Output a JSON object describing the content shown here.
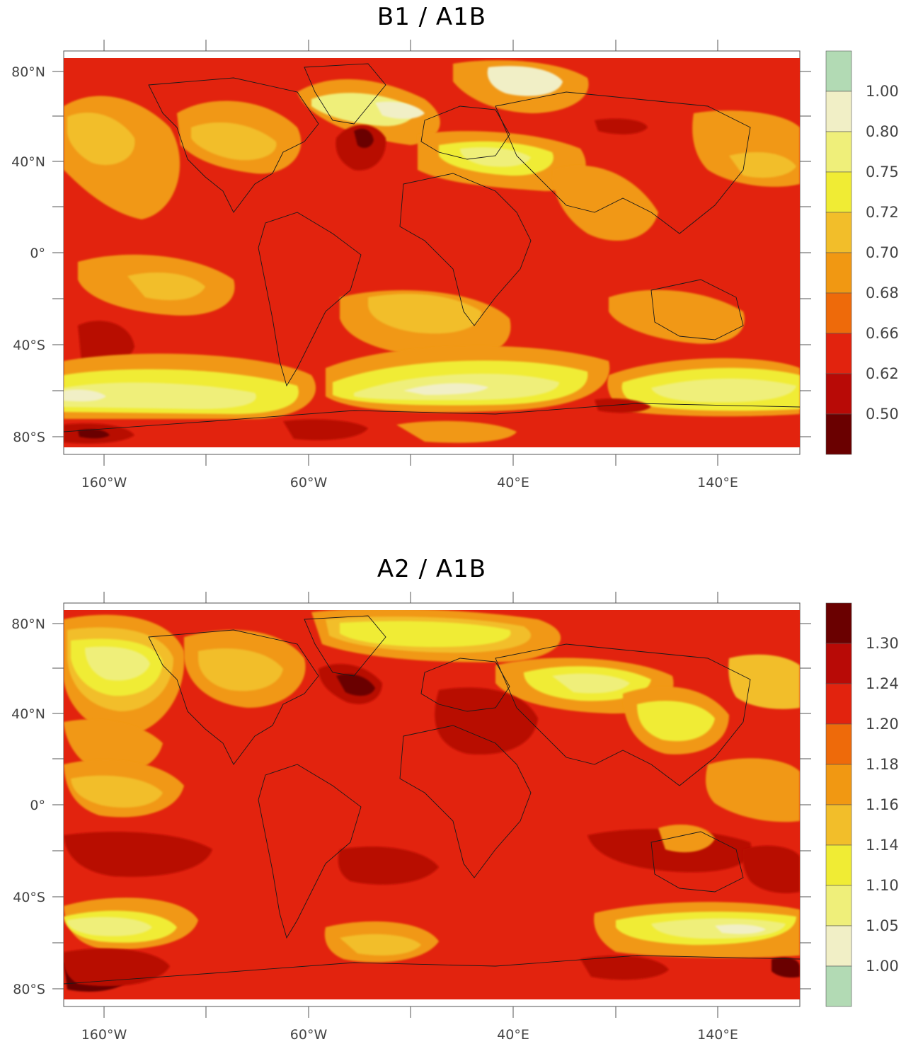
{
  "panels": [
    {
      "title": "B1 / A1B",
      "lat_ticks": [
        "80°N",
        "40°N",
        "0°",
        "40°S",
        "80°S"
      ],
      "lon_ticks": [
        "160°W",
        "60°W",
        "40°E",
        "140°E"
      ],
      "colorbar": {
        "labels": [
          "1.00",
          "0.80",
          "0.75",
          "0.72",
          "0.70",
          "0.68",
          "0.66",
          "0.62",
          "0.50"
        ],
        "colors": [
          "#b2dab4",
          "#f1efc6",
          "#efef7a",
          "#f0ec34",
          "#f2be2a",
          "#f19812",
          "#ee6a0a",
          "#e2230e",
          "#b80a06",
          "#6a0000"
        ]
      },
      "palette": {
        "base": "#e2230e",
        "dark": "#b80a06",
        "darkest": "#6a0000",
        "orange": "#f19812",
        "deep_orange": "#ee6a0a",
        "gold": "#f2be2a",
        "yellow": "#f0ec34",
        "pale_yellow": "#efef7a",
        "cream": "#f1efc6"
      }
    },
    {
      "title": "A2 / A1B",
      "lat_ticks": [
        "80°N",
        "40°N",
        "0°",
        "40°S",
        "80°S"
      ],
      "lon_ticks": [
        "160°W",
        "60°W",
        "40°E",
        "140°E"
      ],
      "colorbar": {
        "labels": [
          "1.30",
          "1.24",
          "1.20",
          "1.18",
          "1.16",
          "1.14",
          "1.10",
          "1.05",
          "1.00"
        ],
        "colors": [
          "#6a0000",
          "#b80a06",
          "#e2230e",
          "#ee6a0a",
          "#f19812",
          "#f2be2a",
          "#f0ec34",
          "#efef7a",
          "#f1efc6",
          "#b2dab4"
        ]
      },
      "palette": {
        "base": "#e2230e",
        "dark": "#b80a06",
        "darkest": "#6a0000",
        "orange": "#f19812",
        "deep_orange": "#ee6a0a",
        "gold": "#f2be2a",
        "yellow": "#f0ec34",
        "pale_yellow": "#efef7a",
        "cream": "#f1efc6"
      }
    }
  ]
}
